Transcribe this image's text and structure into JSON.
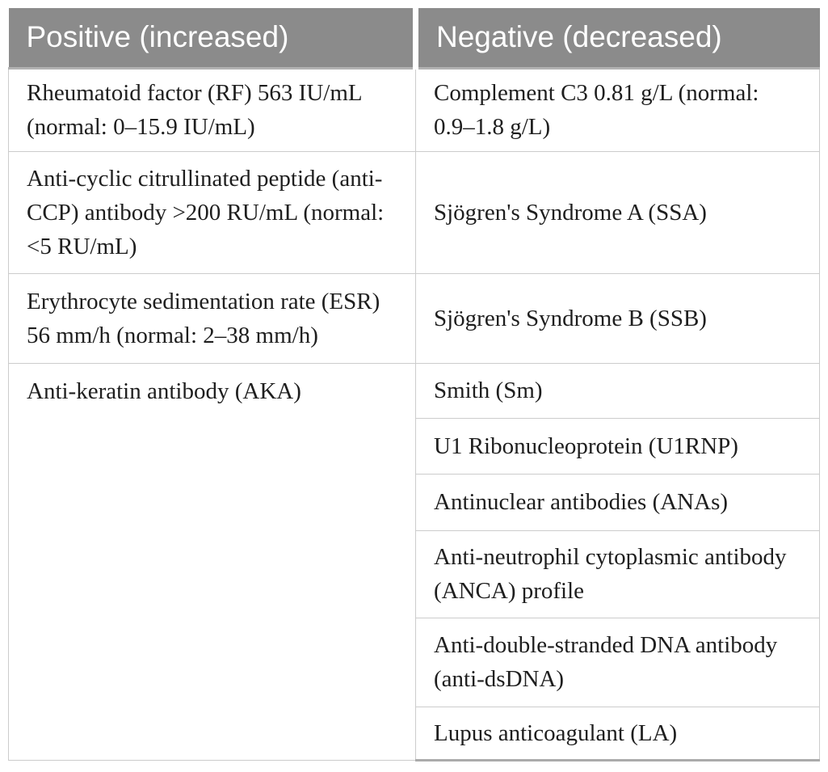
{
  "table": {
    "header": {
      "positive": "Positive (increased)",
      "negative": "Negative (decreased)"
    },
    "rows": [
      {
        "left": "Rheumatoid factor (RF) 563 IU/mL (normal: 0–15.9 IU/mL)",
        "right": [
          "Complement C3 0.81 g/L (normal: 0.9–1.8 g/L)"
        ]
      },
      {
        "left": "Anti-cyclic citrullinated peptide (anti-CCP) antibody >200 RU/mL (normal: <5 RU/mL)",
        "right": [
          "Sjögren's Syndrome A (SSA)"
        ]
      },
      {
        "left": "Erythrocyte sedimentation rate (ESR) 56 mm/h (normal: 2–38 mm/h)",
        "right": [
          "Sjögren's Syndrome B (SSB)"
        ]
      },
      {
        "left": "Anti-keratin antibody (AKA)",
        "right": [
          "Smith (Sm)",
          "U1 Ribonucleoprotein (U1RNP)",
          "Antinuclear antibodies (ANAs)",
          "Anti-neutrophil cytoplasmic antibody (ANCA) profile",
          "Anti-double-stranded DNA antibody (anti-dsDNA)",
          "Lupus anticoagulant (LA)"
        ]
      }
    ],
    "colors": {
      "header_bg": "#8b8b8b",
      "header_text": "#ffffff",
      "body_text": "#1e1e1e",
      "grid_line": "#cccccc",
      "header_edge": "#b2b2b2",
      "bottom_rule": "#ababab"
    }
  }
}
